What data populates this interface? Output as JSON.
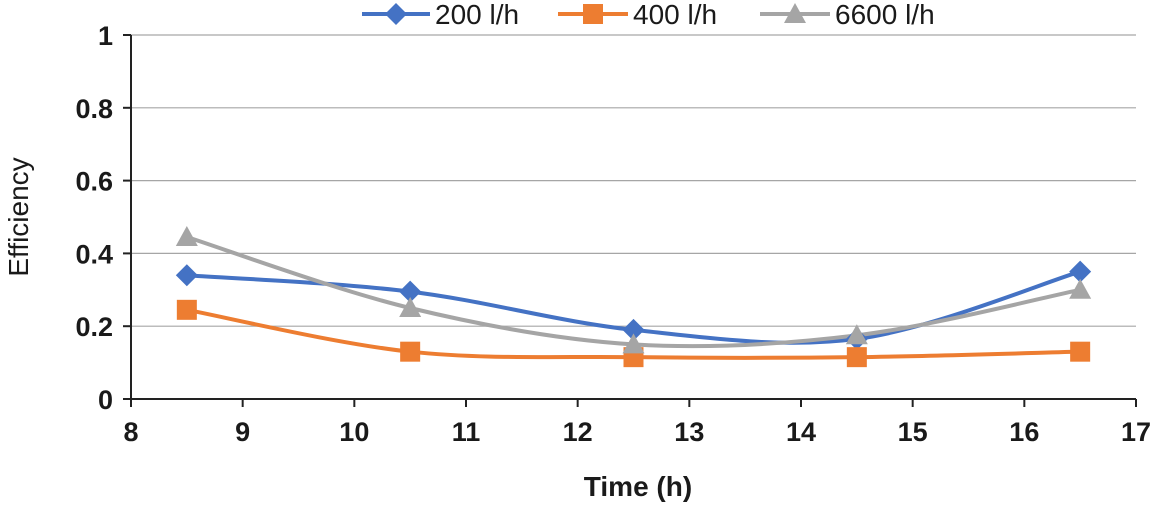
{
  "chart_data": {
    "type": "line",
    "title": "",
    "xlabel": "Time (h)",
    "ylabel": "Efficiency",
    "xlim": [
      8,
      17
    ],
    "ylim": [
      0,
      1
    ],
    "xticks": [
      "8",
      "9",
      "10",
      "11",
      "12",
      "13",
      "14",
      "15",
      "16",
      "17"
    ],
    "yticks": [
      "0",
      "0.2",
      "0.4",
      "0.6",
      "0.8",
      "1"
    ],
    "grid": "horizontal",
    "legend_position": "top",
    "x": [
      8.5,
      10.5,
      12.5,
      14.5,
      16.5
    ],
    "series": [
      {
        "name": "200 l/h",
        "marker": "diamond",
        "color": "#4472C4",
        "values": [
          0.34,
          0.295,
          0.19,
          0.165,
          0.35
        ]
      },
      {
        "name": "400 l/h",
        "marker": "square",
        "color": "#ED7D31",
        "values": [
          0.245,
          0.13,
          0.115,
          0.115,
          0.13
        ]
      },
      {
        "name": "6600 l/h",
        "marker": "triangle",
        "color": "#A5A5A5",
        "values": [
          0.445,
          0.25,
          0.15,
          0.175,
          0.3
        ]
      }
    ]
  }
}
